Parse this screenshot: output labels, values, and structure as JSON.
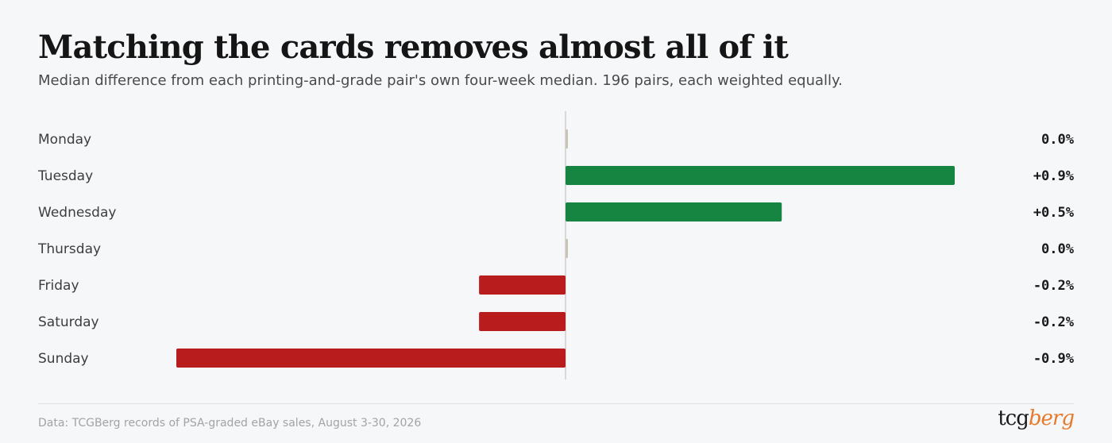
{
  "title": "Matching the cards removes almost all of it",
  "subtitle": "Median difference from each printing-and-grade pair's own four-week median. 196 pairs, each weighted equally.",
  "source": "Data: TCGBerg records of PSA-graded eBay sales, August 3-30, 2026",
  "logo": {
    "part1": "tcg",
    "part2": "berg"
  },
  "colors": {
    "positive": "#178542",
    "negative": "#b91c1c",
    "zero": "#c9c4b8",
    "axis": "#bdb9ae"
  },
  "chart_data": {
    "type": "bar",
    "orientation": "horizontal",
    "categories": [
      "Monday",
      "Tuesday",
      "Wednesday",
      "Thursday",
      "Friday",
      "Saturday",
      "Sunday"
    ],
    "values": [
      0.0,
      0.9,
      0.5,
      0.0,
      -0.2,
      -0.2,
      -0.9
    ],
    "value_labels": [
      "0.0%",
      "+0.9%",
      "+0.5%",
      "0.0%",
      "-0.2%",
      "-0.2%",
      "-0.9%"
    ],
    "unit": "%",
    "xlim": [
      -1.2,
      1.2
    ],
    "grid": false,
    "legend": "none"
  }
}
